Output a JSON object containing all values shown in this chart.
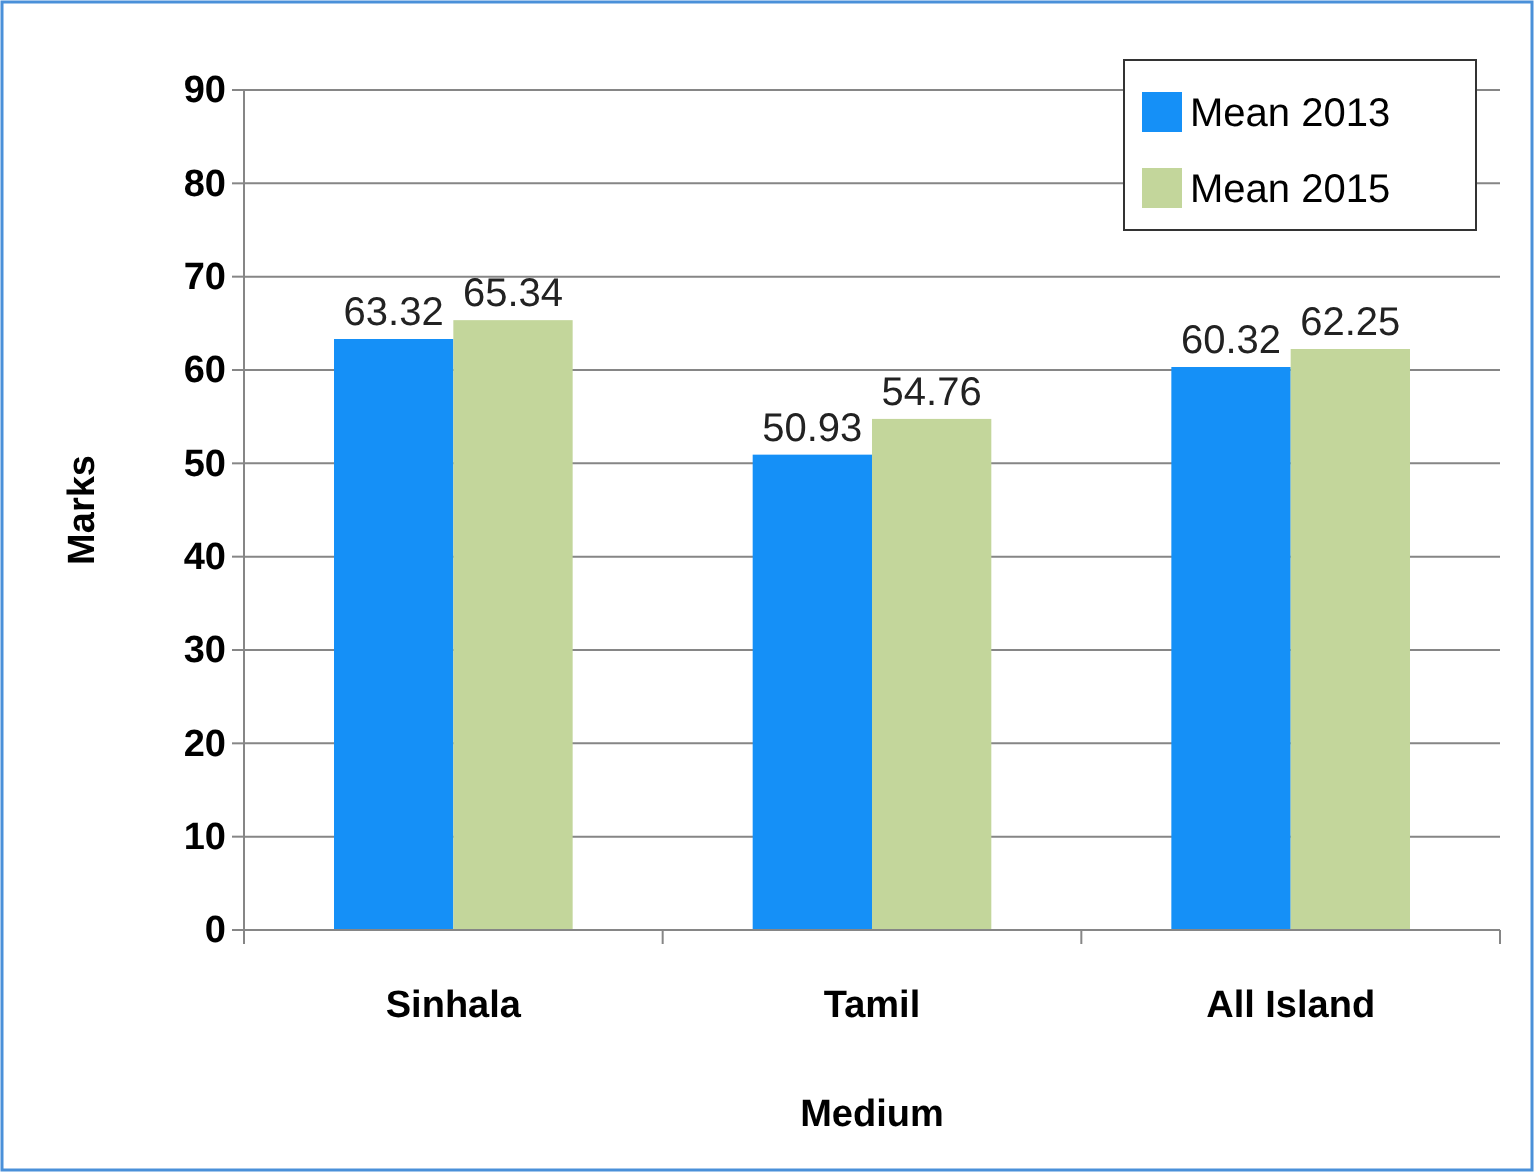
{
  "chart_data": {
    "type": "bar",
    "xlabel": "Medium",
    "ylabel": "Marks",
    "categories": [
      "Sinhala",
      "Tamil",
      "All Island"
    ],
    "series": [
      {
        "name": "Mean 2013",
        "color": "#1590f7",
        "values": [
          63.32,
          50.93,
          60.32
        ]
      },
      {
        "name": "Mean 2015",
        "color": "#c3d69b",
        "values": [
          65.34,
          54.76,
          62.25
        ]
      }
    ],
    "ylim": [
      0,
      90
    ],
    "yticks": [
      0,
      10,
      20,
      30,
      40,
      50,
      60,
      70,
      80,
      90
    ],
    "grid": "y",
    "legend": "top right",
    "data_labels": true
  }
}
